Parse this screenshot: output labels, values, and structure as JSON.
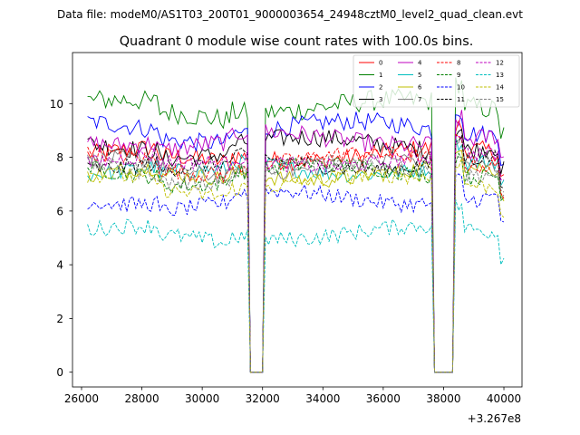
{
  "chart_data": {
    "type": "line",
    "suptitle": "Data file: modeM0/AS1T03_200T01_9000003654_24948cztM0_level2_quad_clean.evt",
    "title": "Quadrant 0 module wise count rates with 100.0s bins.",
    "xlabel": "",
    "ylabel": "",
    "x_offset_label": "+3.267e8",
    "xlim": [
      25700,
      40600
    ],
    "ylim": [
      -0.55,
      11.9
    ],
    "x_ticks": [
      26000,
      28000,
      30000,
      32000,
      34000,
      36000,
      38000,
      40000
    ],
    "x_tick_labels": [
      "26000",
      "28000",
      "30000",
      "32000",
      "34000",
      "36000",
      "38000",
      "40000"
    ],
    "y_ticks": [
      0,
      2,
      4,
      6,
      8,
      10
    ],
    "y_tick_labels": [
      "0",
      "2",
      "4",
      "6",
      "8",
      "10"
    ],
    "grid": false,
    "legend_position": "top-right",
    "legend_columns": 4,
    "bin_size_s": 100,
    "x_start": 26200,
    "x_end": 40000,
    "gaps": [
      [
        31600,
        32000
      ],
      [
        37700,
        38300
      ]
    ],
    "series": [
      {
        "name": "0",
        "color": "#ff0000",
        "dash": "solid",
        "level": 8.1,
        "noise": 0.35
      },
      {
        "name": "1",
        "color": "#008000",
        "dash": "solid",
        "level": 9.9,
        "noise": 0.4
      },
      {
        "name": "2",
        "color": "#0000ff",
        "dash": "solid",
        "level": 9.1,
        "noise": 0.35
      },
      {
        "name": "3",
        "color": "#000000",
        "dash": "solid",
        "level": 8.5,
        "noise": 0.35
      },
      {
        "name": "4",
        "color": "#bf00bf",
        "dash": "solid",
        "level": 8.7,
        "noise": 0.35
      },
      {
        "name": "5",
        "color": "#00bfbf",
        "dash": "solid",
        "level": 7.6,
        "noise": 0.3
      },
      {
        "name": "6",
        "color": "#bfbf00",
        "dash": "solid",
        "level": 7.4,
        "noise": 0.3
      },
      {
        "name": "7",
        "color": "#808080",
        "dash": "solid",
        "level": 7.7,
        "noise": 0.3
      },
      {
        "name": "8",
        "color": "#ff0000",
        "dash": "dashed",
        "level": 7.9,
        "noise": 0.3
      },
      {
        "name": "9",
        "color": "#008000",
        "dash": "dashed",
        "level": 7.5,
        "noise": 0.3
      },
      {
        "name": "10",
        "color": "#0000ff",
        "dash": "dashed",
        "level": 6.5,
        "noise": 0.3
      },
      {
        "name": "11",
        "color": "#000000",
        "dash": "dashed",
        "level": 7.8,
        "noise": 0.3
      },
      {
        "name": "12",
        "color": "#bf00bf",
        "dash": "dashed",
        "level": 7.9,
        "noise": 0.3
      },
      {
        "name": "13",
        "color": "#00bfbf",
        "dash": "dashed",
        "level": 5.2,
        "noise": 0.3
      },
      {
        "name": "14",
        "color": "#bfbf00",
        "dash": "dashed",
        "level": 7.1,
        "noise": 0.3
      },
      {
        "name": "15",
        "color": "#808080",
        "dash": "dashed",
        "level": 7.6,
        "noise": 0.3
      }
    ]
  }
}
